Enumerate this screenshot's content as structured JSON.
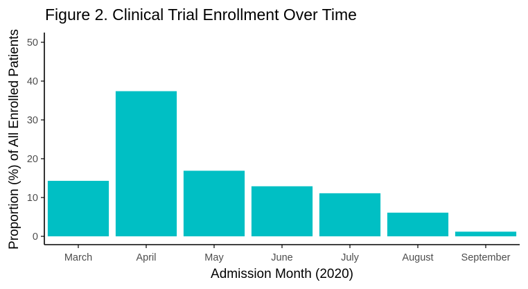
{
  "chart_data": {
    "type": "bar",
    "title": "Figure 2. Clinical Trial Enrollment Over Time",
    "xlabel": "Admission Month (2020)",
    "ylabel": "Proportion (%) of All Enrolled Patients",
    "categories": [
      "March",
      "April",
      "May",
      "June",
      "July",
      "August",
      "September"
    ],
    "values": [
      14.3,
      37.4,
      16.9,
      12.9,
      11.1,
      6.1,
      1.2
    ],
    "ylim": [
      0,
      52
    ],
    "yticks": [
      0,
      10,
      20,
      30,
      40,
      50
    ],
    "grid": false,
    "legend": "none",
    "bar_color": "#00BFC4"
  }
}
